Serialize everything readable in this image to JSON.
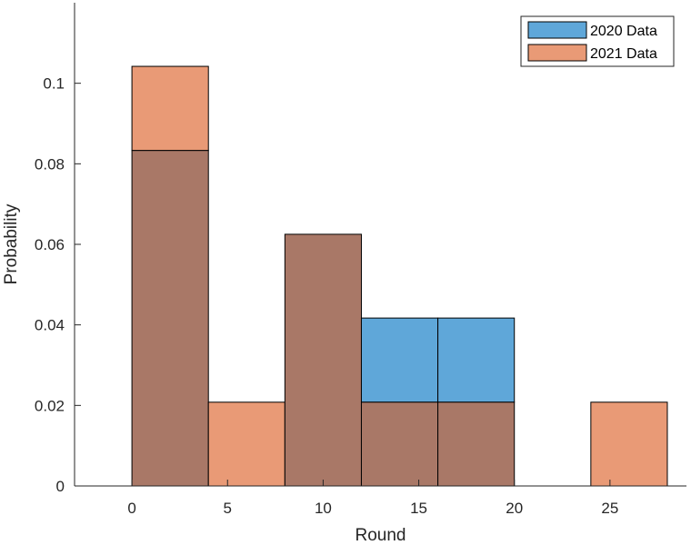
{
  "chart_data": {
    "type": "bar",
    "subtype": "overlaid-histogram",
    "xlabel": "Round",
    "ylabel": "Probability",
    "xlim": [
      -3,
      29
    ],
    "ylim": [
      0,
      0.12
    ],
    "xticks": [
      0,
      5,
      10,
      15,
      20,
      25
    ],
    "xtick_labels": [
      "0",
      "5",
      "10",
      "15",
      "20",
      "25"
    ],
    "yticks": [
      0,
      0.02,
      0.04,
      0.06,
      0.08,
      0.1
    ],
    "ytick_labels": [
      "0",
      "0.02",
      "0.04",
      "0.06",
      "0.08",
      "0.1"
    ],
    "bin_edges": [
      0,
      4,
      8,
      12,
      16,
      20,
      24,
      28
    ],
    "legend_position": "top-right",
    "series": [
      {
        "name": "2020 Data",
        "color": "#0072BD",
        "face_color": "#5fa7d9",
        "values": [
          0.0833,
          0,
          0.0625,
          0.0417,
          0.0417,
          0,
          0
        ]
      },
      {
        "name": "2021 Data",
        "color": "#D95319",
        "face_color": "#e99a76",
        "values": [
          0.1042,
          0.0208,
          0.0625,
          0.0208,
          0.0208,
          0,
          0.0208
        ]
      }
    ],
    "overlap_color": "#a97867",
    "grid": false
  }
}
